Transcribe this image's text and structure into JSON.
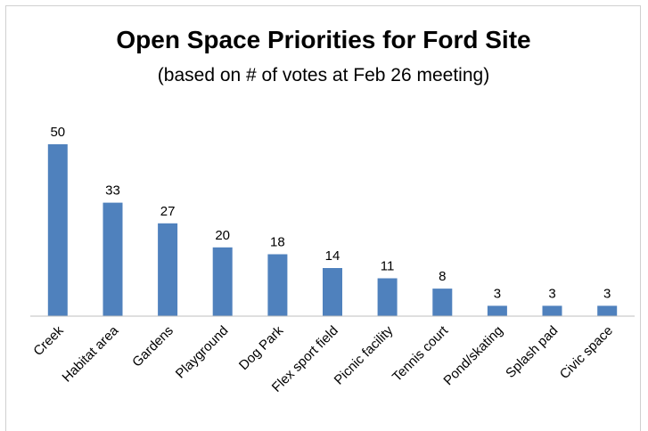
{
  "chart_data": {
    "type": "bar",
    "title": "Open Space Priorities for Ford Site",
    "subtitle": "(based on # of votes at Feb 26 meeting)",
    "xlabel": "",
    "ylabel": "",
    "categories": [
      "Creek",
      "Habitat area",
      "Gardens",
      "Playground",
      "Dog Park",
      "Flex sport field",
      "Picnic facility",
      "Tennis court",
      "Pond/skating",
      "Splash pad",
      "Civic space"
    ],
    "values": [
      50,
      33,
      27,
      20,
      18,
      14,
      11,
      8,
      3,
      3,
      3
    ],
    "ylim": [
      0,
      50
    ],
    "grid": false,
    "legend": "none",
    "bar_color": "#4f81bd",
    "axis_color": "#bfbfbf"
  }
}
